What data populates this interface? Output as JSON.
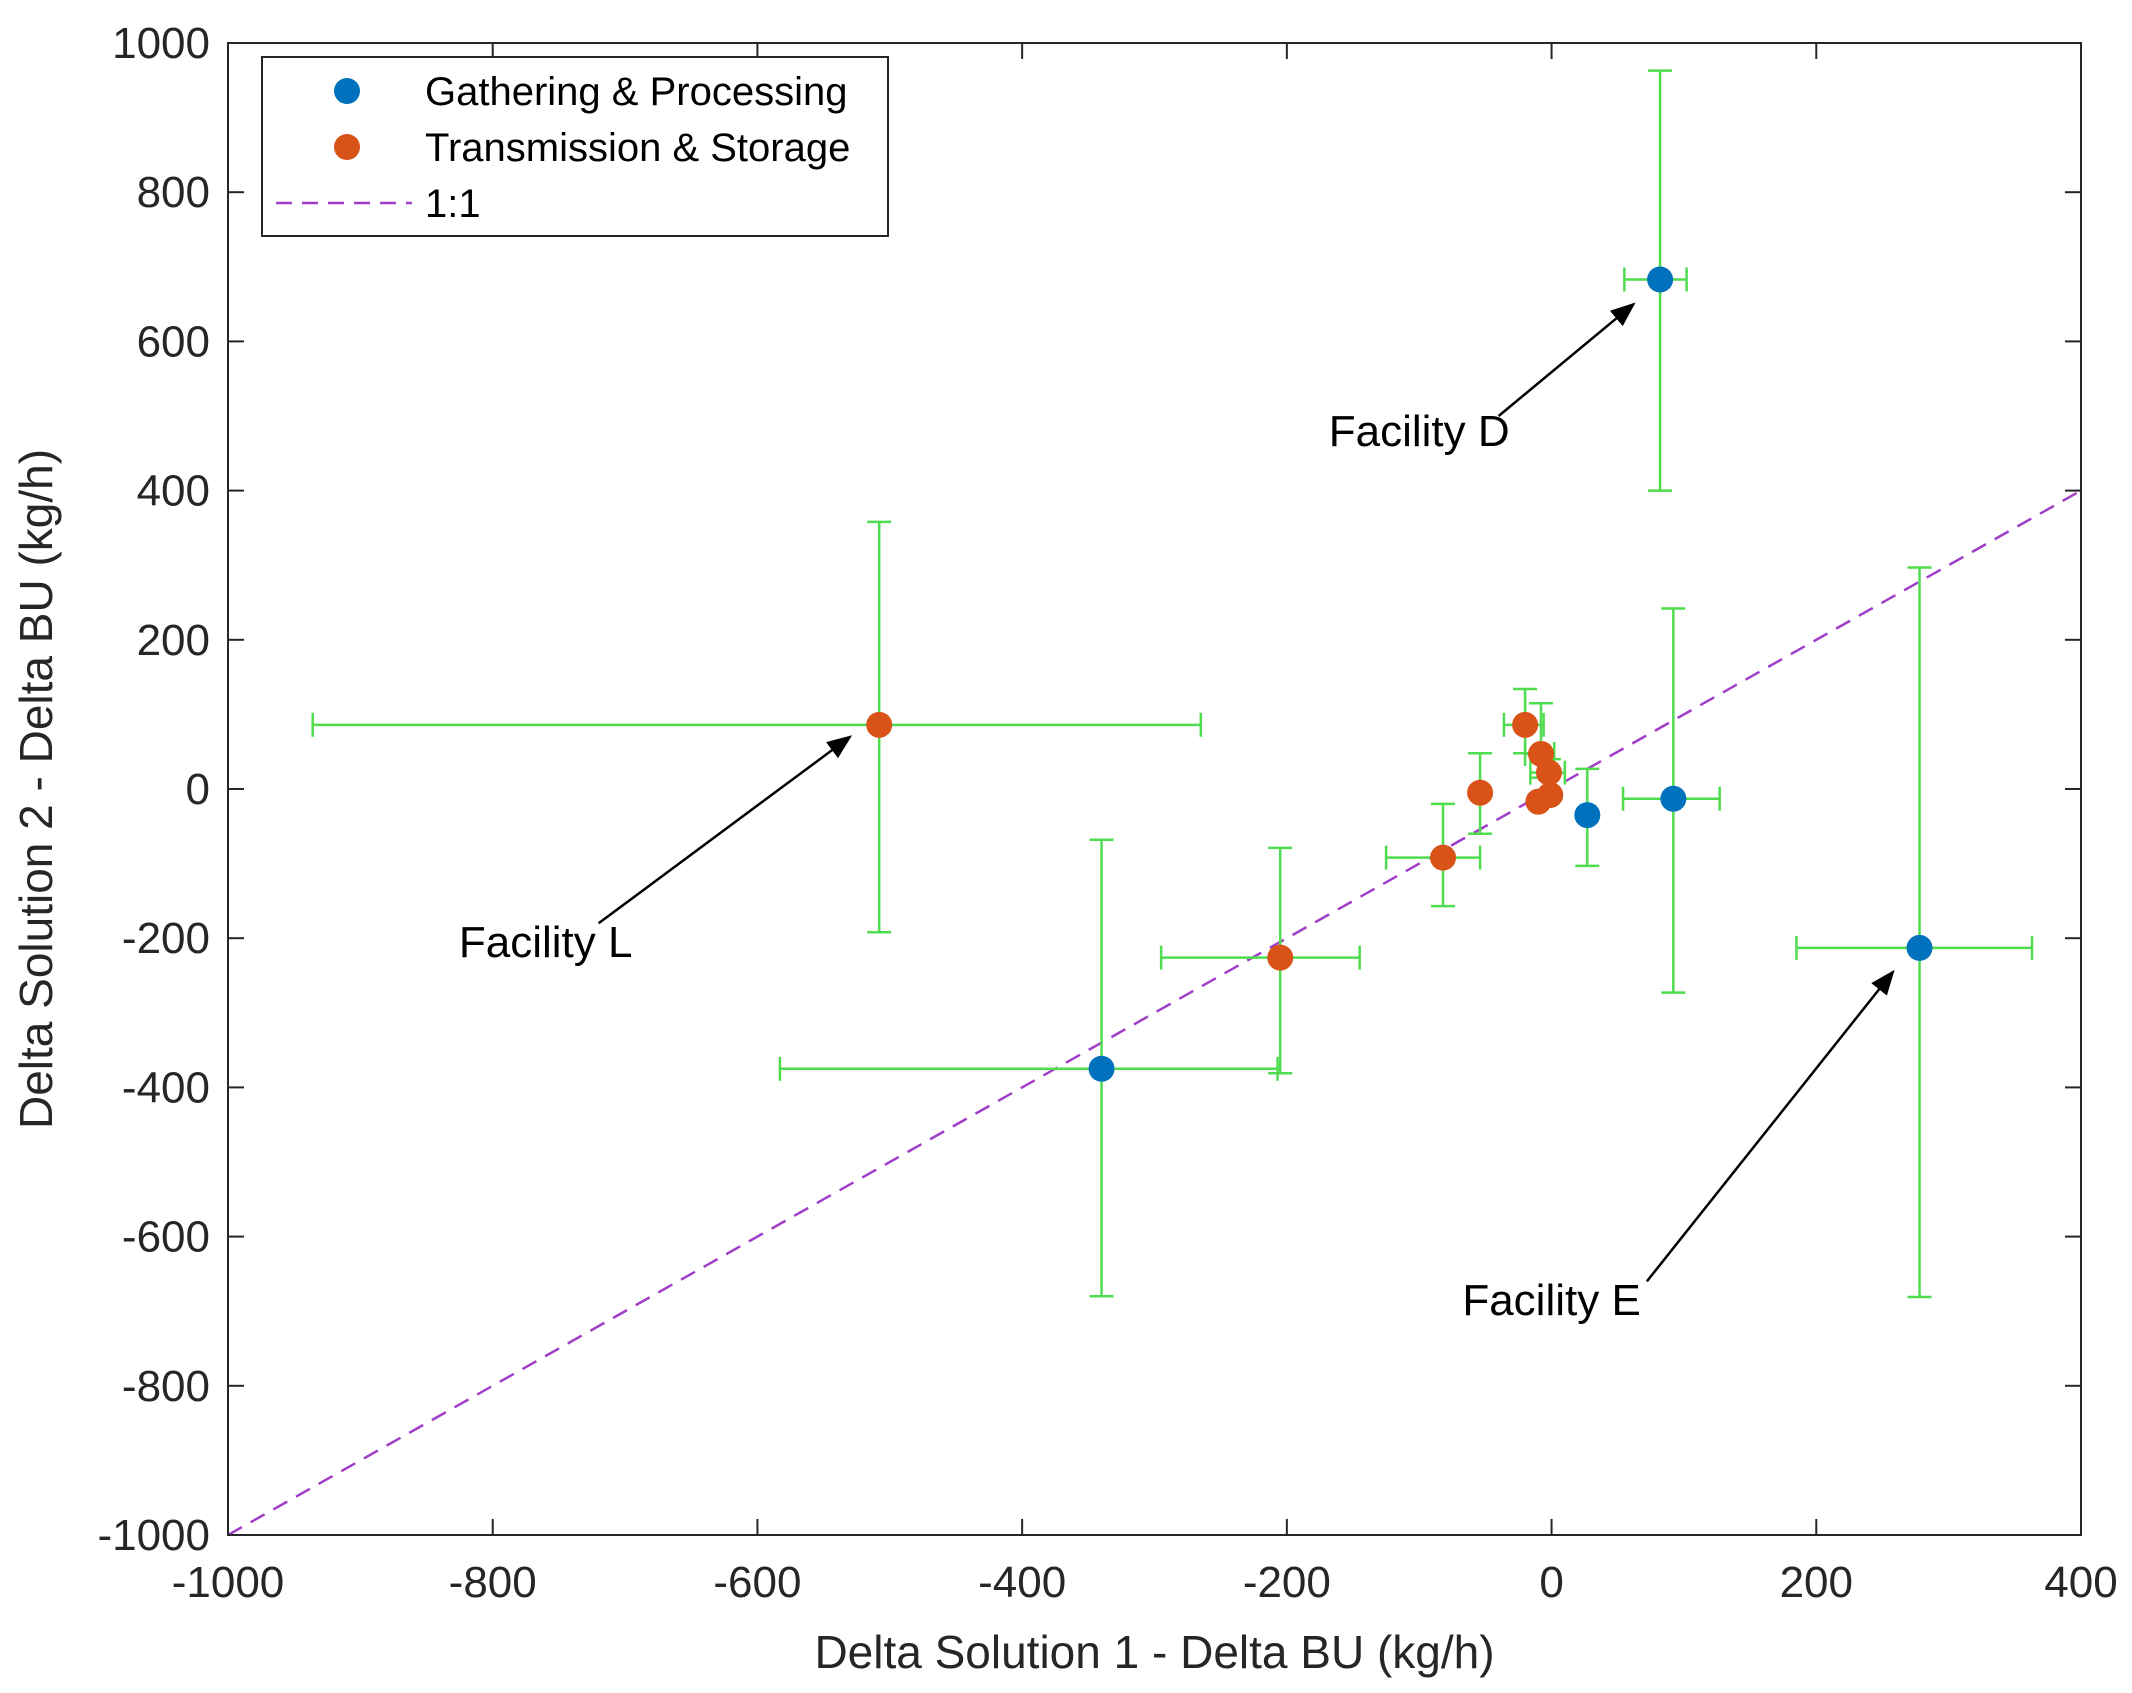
{
  "chart_data": {
    "type": "scatter",
    "xlabel": "Delta Solution 1 - Delta BU (kg/h)",
    "ylabel": "Delta Solution 2 - Delta BU (kg/h)",
    "xlim": [
      -1000,
      400
    ],
    "ylim": [
      -1000,
      1000
    ],
    "xticks": [
      -1000,
      -800,
      -600,
      -400,
      -200,
      0,
      200,
      400
    ],
    "yticks": [
      -1000,
      -800,
      -600,
      -400,
      -200,
      0,
      200,
      400,
      600,
      800,
      1000
    ],
    "grid": false,
    "legend_position": "top-left",
    "errorbar_color": "#4fdc4f",
    "series": [
      {
        "name": "Gathering & Processing",
        "color": "#0072bd",
        "points": [
          {
            "x": 82,
            "y": 683,
            "xerr_low": 27,
            "xerr_high": 20,
            "yerr_low": 283,
            "yerr_high": 280
          },
          {
            "x": -340,
            "y": -375,
            "xerr_low": 243,
            "xerr_high": 133,
            "yerr_low": 305,
            "yerr_high": 307
          },
          {
            "x": 27,
            "y": -35,
            "xerr_low": 0,
            "xerr_high": 0,
            "yerr_low": 68,
            "yerr_high": 62
          },
          {
            "x": 92,
            "y": -13,
            "xerr_low": 38,
            "xerr_high": 35,
            "yerr_low": 260,
            "yerr_high": 255
          },
          {
            "x": 278,
            "y": -213,
            "xerr_low": 93,
            "xerr_high": 85,
            "yerr_low": 468,
            "yerr_high": 510
          }
        ]
      },
      {
        "name": "Transmission & Storage",
        "color": "#d95319",
        "points": [
          {
            "x": -508,
            "y": 86,
            "xerr_low": 428,
            "xerr_high": 243,
            "yerr_low": 278,
            "yerr_high": 272
          },
          {
            "x": -205,
            "y": -226,
            "xerr_low": 90,
            "xerr_high": 60,
            "yerr_low": 155,
            "yerr_high": 147
          },
          {
            "x": -82,
            "y": -92,
            "xerr_low": 43,
            "xerr_high": 28,
            "yerr_low": 65,
            "yerr_high": 72
          },
          {
            "x": -54,
            "y": -5,
            "xerr_low": 0,
            "xerr_high": 0,
            "yerr_low": 55,
            "yerr_high": 53
          },
          {
            "x": -20,
            "y": 86,
            "xerr_low": 16,
            "xerr_high": 14,
            "yerr_low": 38,
            "yerr_high": 48
          },
          {
            "x": -8,
            "y": 47,
            "xerr_low": 12,
            "xerr_high": 10,
            "yerr_low": 32,
            "yerr_high": 68
          },
          {
            "x": -2,
            "y": 22,
            "xerr_low": 14,
            "xerr_high": 12,
            "yerr_low": 28,
            "yerr_high": 18
          },
          {
            "x": -10,
            "y": -17,
            "xerr_low": 0,
            "xerr_high": 0,
            "yerr_low": 0,
            "yerr_high": 0
          },
          {
            "x": -1,
            "y": -8,
            "xerr_low": 0,
            "xerr_high": 0,
            "yerr_low": 0,
            "yerr_high": 0
          }
        ]
      }
    ],
    "reference_line": {
      "name": "1:1",
      "color": "#a03ec8",
      "from": [
        -1000,
        -1000
      ],
      "to": [
        400,
        400
      ]
    },
    "annotations": [
      {
        "text": "Facility D",
        "text_at": [
          -100,
          460
        ],
        "arrow_from": [
          -40,
          500
        ],
        "arrow_to": [
          62,
          650
        ]
      },
      {
        "text": "Facility L",
        "text_at": [
          -760,
          -225
        ],
        "arrow_from": [
          -720,
          -180
        ],
        "arrow_to": [
          -530,
          70
        ]
      },
      {
        "text": "Facility E",
        "text_at": [
          0,
          -705
        ],
        "arrow_from": [
          72,
          -660
        ],
        "arrow_to": [
          258,
          -245
        ]
      }
    ]
  },
  "legend": {
    "items": [
      {
        "label": "Gathering & Processing",
        "marker": "dot",
        "color": "#0072bd"
      },
      {
        "label": "Transmission & Storage",
        "marker": "dot",
        "color": "#d95319"
      },
      {
        "label": "1:1",
        "marker": "dashed-line",
        "color": "#a03ec8"
      }
    ]
  }
}
